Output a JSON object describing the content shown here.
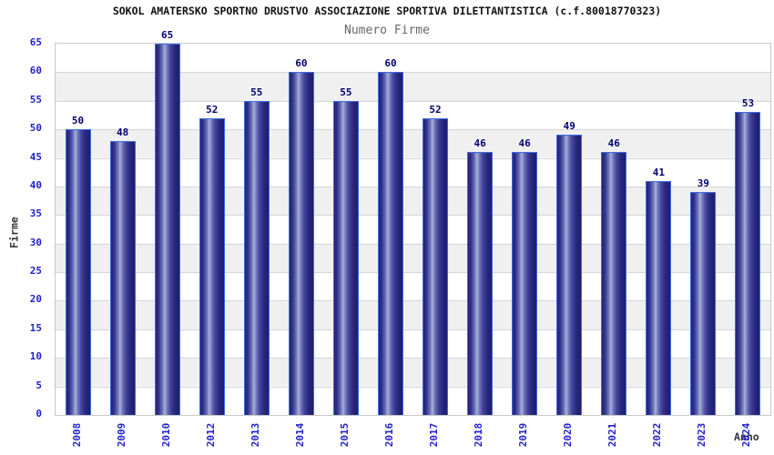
{
  "chart_data": {
    "type": "bar",
    "title": "SOKOL AMATERSKO SPORTNO DRUSTVO ASSOCIAZIONE SPORTIVA DILETTANTISTICA (c.f.80018770323)",
    "subtitle": "Numero Firme",
    "xlabel": "Anno",
    "ylabel": "Firme",
    "categories": [
      "2008",
      "2009",
      "2010",
      "2012",
      "2013",
      "2014",
      "2015",
      "2016",
      "2017",
      "2018",
      "2019",
      "2020",
      "2021",
      "2022",
      "2023",
      "2024"
    ],
    "values": [
      50,
      48,
      65,
      52,
      55,
      60,
      55,
      60,
      52,
      46,
      46,
      49,
      46,
      41,
      39,
      53
    ],
    "ylim": [
      0,
      65
    ],
    "ytick_step": 5,
    "legend": "none",
    "grid": "horizontal-bands",
    "colors": {
      "bar_dark": "#1d1d70",
      "bar_highlight": "#a8b0dc",
      "bar_border": "#3f6be0",
      "tick_label": "#2222cc",
      "value_label": "#00006e",
      "band_gray": "#f0f0f0",
      "plot_border": "#c8c8c8",
      "title": "#111111",
      "subtitle": "#666666",
      "axis_title": "#333333"
    }
  }
}
